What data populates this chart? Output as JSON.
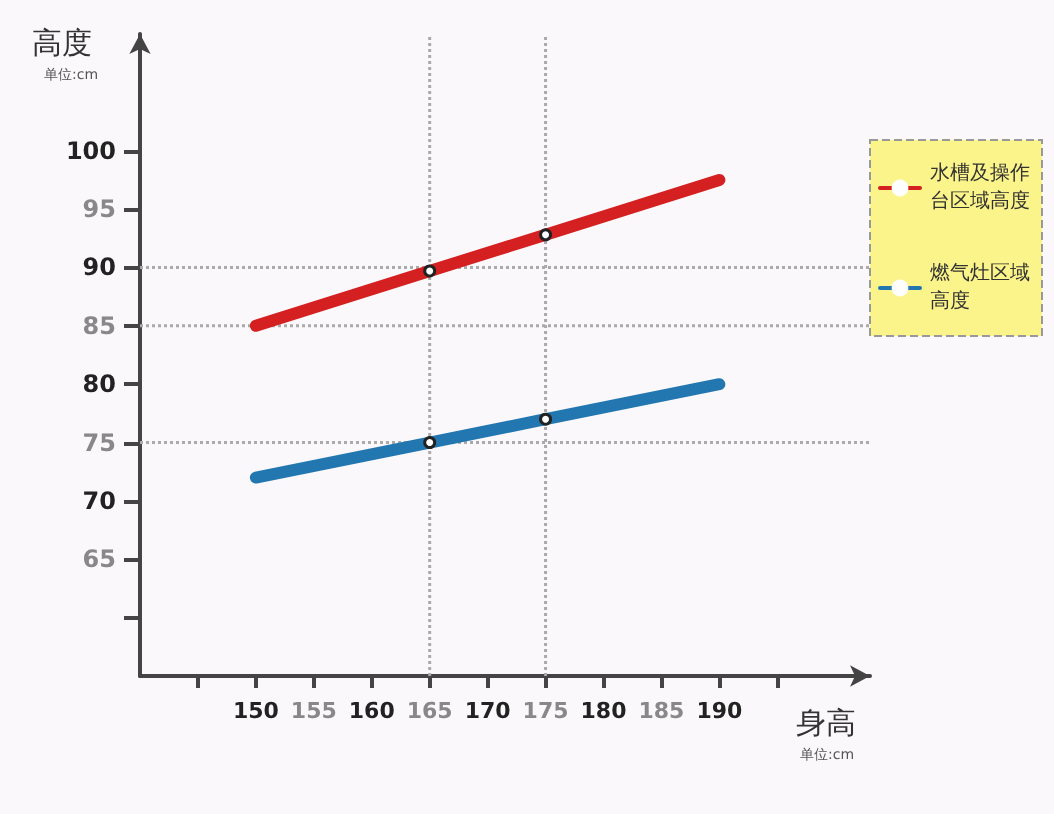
{
  "chart_data": {
    "type": "line",
    "ylabel": "高度",
    "xlabel": "身高",
    "annotations": [
      "单位:cm",
      "单位:cm"
    ],
    "x": [
      150,
      165,
      175,
      190
    ],
    "series": [
      {
        "name": "水槽及操作台区域高度",
        "color": "#d42020",
        "values": [
          85,
          89.7,
          92.8,
          97.5
        ]
      },
      {
        "name": "燃气灶区域高度",
        "color": "#2277b0",
        "values": [
          72,
          75,
          77,
          80
        ]
      }
    ],
    "xlim": [
      140,
      203
    ],
    "xticks": [
      {
        "value": 145,
        "label": null
      },
      150,
      155,
      160,
      165,
      170,
      175,
      180,
      185,
      190,
      {
        "value": 195,
        "label": null
      }
    ],
    "ylim": [
      55,
      110
    ],
    "yticks": [
      {
        "value": 60,
        "label": null
      },
      65,
      70,
      75,
      80,
      85,
      90,
      95,
      100
    ],
    "ref_lines": [
      {
        "axis": "y",
        "value": 90,
        "label": null,
        "line_style": "dotted",
        "color": "#aaaaaa"
      },
      {
        "axis": "y",
        "value": 85,
        "label": null,
        "line_style": "dotted",
        "color": "#aaaaaa"
      },
      {
        "axis": "y",
        "value": 75,
        "label": null,
        "line_style": "dotted",
        "color": "#aaaaaa"
      },
      {
        "axis": "x",
        "value": 165,
        "label": null,
        "line_style": "dotted",
        "color": "#aaaaaa"
      },
      {
        "axis": "x",
        "value": 175,
        "label": null,
        "line_style": "dotted",
        "color": "#aaaaaa"
      }
    ],
    "grid": false,
    "legend": "right",
    "marker": "circle",
    "line_style": "solid"
  }
}
